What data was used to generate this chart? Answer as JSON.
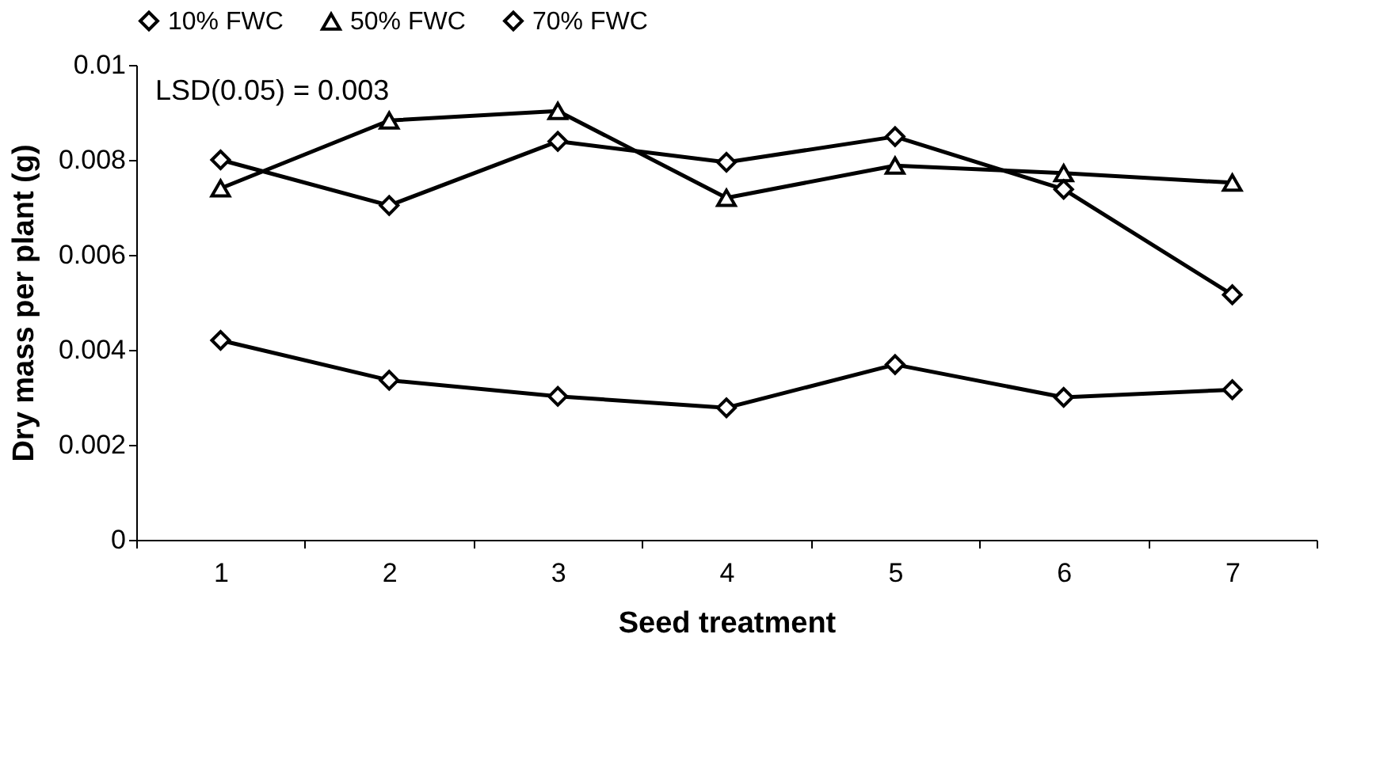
{
  "chart_data": {
    "type": "line",
    "xlabel": "Seed treatment",
    "ylabel": "Dry mass per plant (g)",
    "categories": [
      "1",
      "2",
      "3",
      "4",
      "5",
      "6",
      "7"
    ],
    "series": [
      {
        "name": "10% FWC",
        "color": "#000000",
        "marker": "diamond",
        "values": [
          0.0042,
          0.00336,
          0.00302,
          0.00278,
          0.00369,
          0.003,
          0.00316
        ]
      },
      {
        "name": "50% FWC",
        "color": "#000000",
        "marker": "triangle",
        "values": [
          0.0074,
          0.00883,
          0.00903,
          0.0072,
          0.00788,
          0.00772,
          0.00752
        ]
      },
      {
        "name": "70% FWC",
        "color": "#000000",
        "marker": "diamond",
        "values": [
          0.008,
          0.00704,
          0.00839,
          0.00795,
          0.00849,
          0.00738,
          0.00516
        ]
      }
    ],
    "ylim": [
      0,
      0.01
    ],
    "yticks": [
      0,
      0.002,
      0.004,
      0.006,
      0.008,
      0.01
    ],
    "annotations": [
      "LSD(0.05) = 0.003"
    ],
    "grid": false,
    "legend": "top",
    "line_style": "solid"
  }
}
